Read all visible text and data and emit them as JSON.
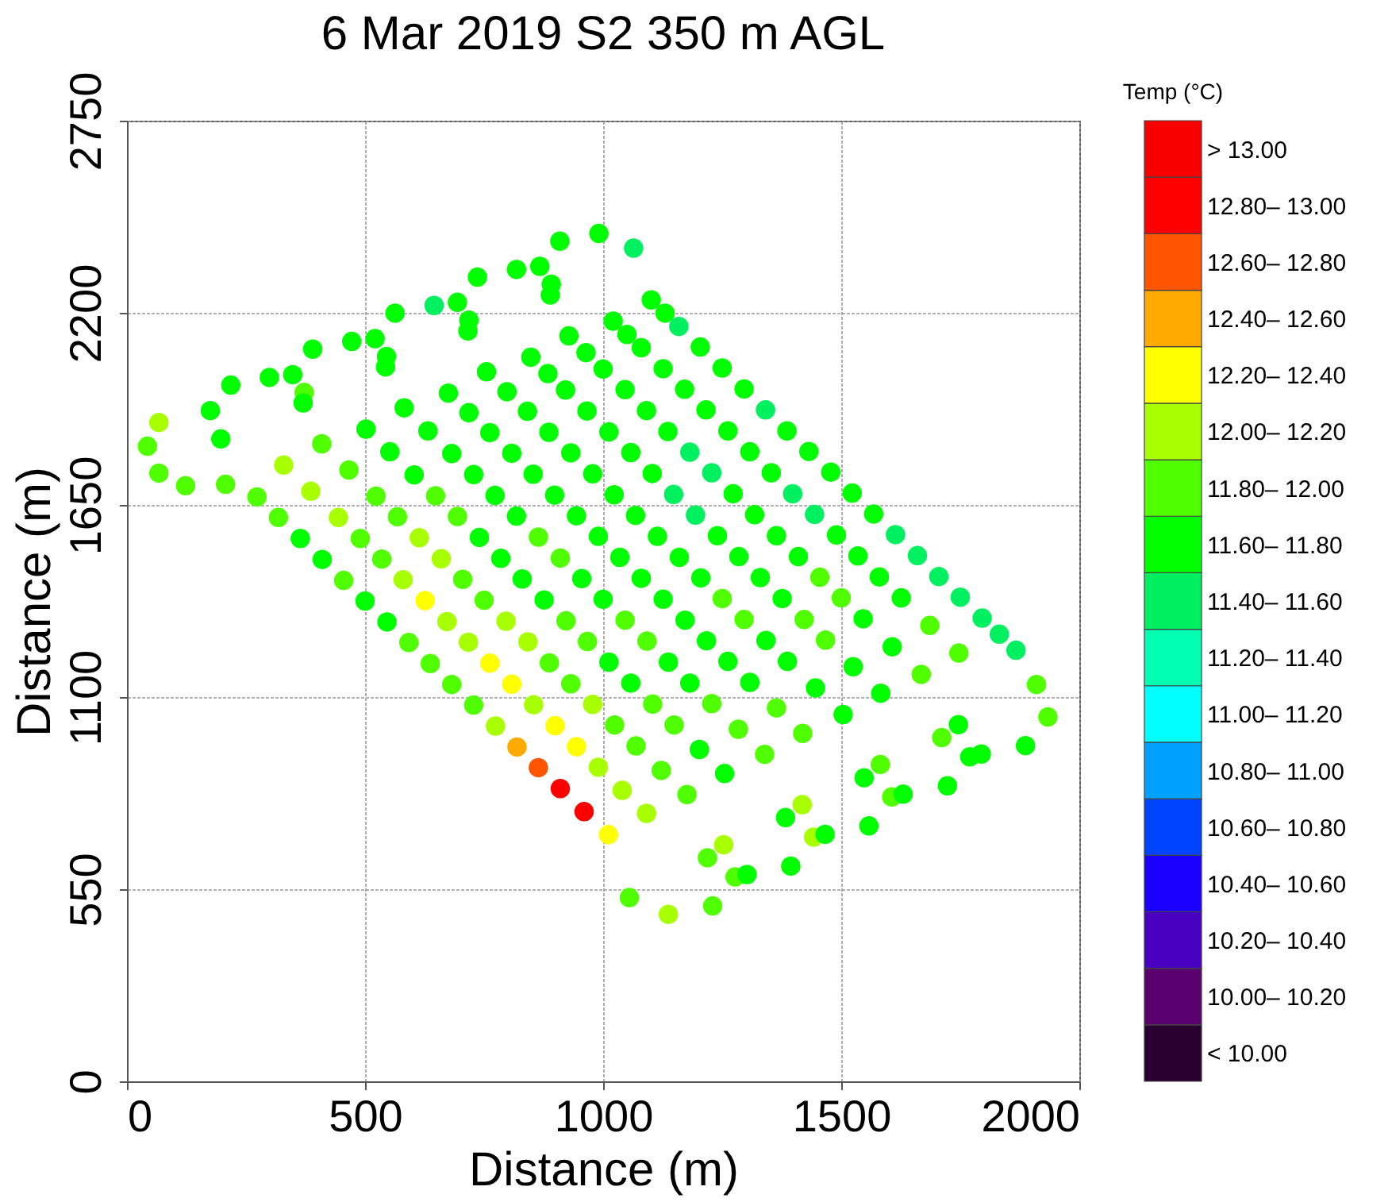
{
  "chart_data": {
    "type": "scatter",
    "title": "6 Mar 2019 S2 350 m AGL",
    "xlabel": "Distance (m)",
    "ylabel": "Distance (m)",
    "clabel": "Temp (°C)",
    "x": [
      67,
      43,
      67,
      123,
      207,
      273,
      318,
      364,
      410,
      455,
      500,
      546,
      592,
      637,
      682,
      728,
      774,
      819,
      864,
      910,
      960,
      1011,
      1055,
      1137,
      1230,
      1277,
      1253,
      1091,
      1040,
      990,
      944,
      899,
      854,
      808,
      762,
      717,
      672,
      626,
      580,
      535,
      490,
      444,
      386,
      329,
      197,
      175,
      218,
      299,
      372,
      409,
      466,
      523,
      568,
      614,
      660,
      705,
      750,
      796,
      842,
      887,
      932,
      978,
      1024,
      1069,
      1122,
      1176,
      1219,
      1302,
      1394,
      1442,
      1418,
      1255,
      1202,
      1149,
      1104,
      1058,
      1012,
      967,
      922,
      876,
      830,
      785,
      740,
      694,
      648,
      603,
      552,
      502,
      370,
      348,
      390,
      472,
      545,
      582,
      632,
      682,
      728,
      773,
      818,
      864,
      910,
      955,
      1000,
      1046,
      1092,
      1137,
      1182,
      1228,
      1284,
      1339,
      1383,
      1466,
      1558,
      1606,
      1582,
      1419,
      1364,
      1308,
      1262,
      1217,
      1172,
      1126,
      1080,
      1035,
      990,
      944,
      898,
      853,
      808,
      762,
      718,
      675,
      543,
      521,
      563,
      645,
      718,
      755,
      798,
      841,
      886,
      932,
      978,
      1023,
      1068,
      1114,
      1160,
      1205,
      1250,
      1296,
      1342,
      1387,
      1446,
      1504,
      1548,
      1630,
      1723,
      1770,
      1746,
      1583,
      1525,
      1467,
      1422,
      1376,
      1330,
      1285,
      1240,
      1194,
      1148,
      1103,
      1058,
      1012,
      966,
      921,
      884,
      848,
      716,
      694,
      736,
      818,
      891,
      928,
      964,
      1000,
      1046,
      1091,
      1136,
      1182,
      1228,
      1273,
      1318,
      1364,
      1410,
      1455,
      1500,
      1546,
      1607,
      1668,
      1711,
      1794,
      1887,
      1934,
      1910,
      1747,
      1686,
      1626,
      1580,
      1535,
      1490,
      1444,
      1398,
      1353,
      1308,
      1262,
      1216,
      1171,
      1126,
      1080,
      1050,
      1021,
      889,
      867,
      909,
      991,
      1064,
      1101,
      1130,
      1159,
      1204,
      1250,
      1296,
      1341,
      1386,
      1432,
      1478,
      1523,
      1568,
      1614,
      1660,
      1705,
      1750,
      1796,
      1832,
      1867
    ],
    "values": [
      1886,
      1818,
      1741,
      1705,
      1709,
      1673,
      1614,
      1554,
      1494,
      1434,
      1375,
      1315,
      1256,
      1196,
      1136,
      1077,
      1017,
      957,
      898,
      838,
      772,
      706,
      526,
      478,
      502,
      585,
      677,
      767,
      833,
      899,
      958,
      1018,
      1078,
      1137,
      1197,
      1257,
      1316,
      1376,
      1436,
      1495,
      1554,
      1614,
      1689,
      1764,
      1839,
      1920,
      1993,
      2015,
      1972,
      1825,
      1750,
      1675,
      1616,
      1556,
      1496,
      1437,
      1377,
      1317,
      1258,
      1198,
      1138,
      1079,
      1020,
      960,
      890,
      821,
      640,
      592,
      616,
      699,
      792,
      881,
      950,
      1020,
      1080,
      1140,
      1200,
      1259,
      1318,
      1378,
      1438,
      1497,
      1557,
      1617,
      1676,
      1736,
      1802,
      1867,
      1942,
      2023,
      2096,
      2118,
      2075,
      1928,
      1862,
      1797,
      1737,
      1677,
      1618,
      1558,
      1498,
      1439,
      1380,
      1320,
      1260,
      1200,
      1140,
      1081,
      1008,
      936,
      755,
      707,
      731,
      814,
      907,
      996,
      1069,
      1142,
      1202,
      1261,
      1320,
      1380,
      1440,
      1500,
      1560,
      1619,
      1678,
      1738,
      1798,
      1857,
      1914,
      1970,
      2045,
      2126,
      2199,
      2221,
      2179,
      2031,
      1974,
      1918,
      1858,
      1799,
      1739,
      1679,
      1620,
      1560,
      1500,
      1441,
      1382,
      1322,
      1262,
      1202,
      1126,
      1050,
      869,
      822,
      846,
      929,
      1021,
      1111,
      1187,
      1263,
      1322,
      1382,
      1442,
      1502,
      1562,
      1621,
      1680,
      1740,
      1800,
      1859,
      1919,
      1979,
      2026,
      2073,
      2148,
      2230,
      2302,
      2324,
      2282,
      2134,
      2086,
      2039,
      1980,
      1920,
      1860,
      1801,
      1742,
      1682,
      1622,
      1562,
      1502,
      1443,
      1384,
      1324,
      1244,
      1165,
      984,
      937,
      961,
      1043,
      1136,
      1226,
      1305,
      1384,
      1444,
      1504,
      1564,
      1623,
      1682,
      1742,
      1802,
      1862,
      1922,
      1981,
      2040,
      2100,
      2138,
      2176,
      2251,
      2333,
      2405,
      2427,
      2385,
      2237,
      2199,
      2161,
      2102,
      2042,
      1982,
      1922,
      1862,
      1803,
      1744,
      1684,
      1624,
      1565,
      1505,
      1445,
      1386,
      1326,
      1280,
      1234
    ],
    "cvalues": [
      12.1,
      11.9,
      11.9,
      11.9,
      11.9,
      11.9,
      11.9,
      11.7,
      11.7,
      11.9,
      11.7,
      11.7,
      11.9,
      11.9,
      11.9,
      11.9,
      12.1,
      12.5,
      12.7,
      12.9,
      12.9,
      12.3,
      11.9,
      12.1,
      11.9,
      11.9,
      12.1,
      12.1,
      12.1,
      12.1,
      12.3,
      12.3,
      12.1,
      12.3,
      12.3,
      12.1,
      12.1,
      12.3,
      12.1,
      11.9,
      11.9,
      12.1,
      12.1,
      12.1,
      11.7,
      11.7,
      11.7,
      11.7,
      11.9,
      11.9,
      11.9,
      11.9,
      11.9,
      12.1,
      12.1,
      11.9,
      11.9,
      12.1,
      12.1,
      11.9,
      11.9,
      12.1,
      11.9,
      11.9,
      11.9,
      11.9,
      11.9,
      11.7,
      11.7,
      12.1,
      12.1,
      11.7,
      11.7,
      11.9,
      11.9,
      11.7,
      11.7,
      11.9,
      11.9,
      11.7,
      11.7,
      11.7,
      11.7,
      11.9,
      11.9,
      11.7,
      11.7,
      11.7,
      11.7,
      11.7,
      11.7,
      11.7,
      11.7,
      11.7,
      11.7,
      11.7,
      11.7,
      11.7,
      11.7,
      11.9,
      11.9,
      11.7,
      11.7,
      11.9,
      11.9,
      11.7,
      11.7,
      11.9,
      11.9,
      11.9,
      11.7,
      11.7,
      11.7,
      11.9,
      11.9,
      11.9,
      11.9,
      11.7,
      11.7,
      11.7,
      11.7,
      11.7,
      11.7,
      11.7,
      11.7,
      11.7,
      11.7,
      11.7,
      11.7,
      11.7,
      11.7,
      11.7,
      11.7,
      11.7,
      11.7,
      11.5,
      11.7,
      11.7,
      11.7,
      11.7,
      11.7,
      11.7,
      11.7,
      11.7,
      11.7,
      11.7,
      11.7,
      11.7,
      11.9,
      11.9,
      11.7,
      11.7,
      11.7,
      11.7,
      11.7,
      11.7,
      11.7,
      11.7,
      11.7,
      11.7,
      11.7,
      11.9,
      11.9,
      11.7,
      11.7,
      11.7,
      11.7,
      11.5,
      11.5,
      11.7,
      11.7,
      11.7,
      11.7,
      11.7,
      11.7,
      11.7,
      11.7,
      11.7,
      11.7,
      11.7,
      11.7,
      11.7,
      11.7,
      11.7,
      11.7,
      11.7,
      11.7,
      11.5,
      11.5,
      11.7,
      11.7,
      11.7,
      11.7,
      11.9,
      11.9,
      11.7,
      11.7,
      11.9,
      11.9,
      11.7,
      11.7,
      11.9,
      11.9,
      11.9,
      11.9,
      11.7,
      11.7,
      11.7,
      11.7,
      11.5,
      11.5,
      11.7,
      11.7,
      11.7,
      11.7,
      11.7,
      11.7,
      11.7,
      11.7,
      11.7,
      11.7,
      11.7,
      11.7,
      11.7,
      11.5,
      11.7,
      11.7,
      11.5,
      11.7,
      11.7,
      11.7,
      11.5,
      11.7,
      11.7,
      11.7,
      11.7,
      11.7,
      11.5,
      11.5,
      11.5,
      11.5,
      11.5,
      11.5,
      11.5
    ],
    "xlim": [
      0,
      2000
    ],
    "xticks": [
      0,
      500,
      1000,
      1500,
      2000
    ],
    "ylim": [
      0,
      2750
    ],
    "yticks": [
      0,
      550,
      1100,
      1650,
      2200,
      2750
    ],
    "clim": [
      9.8,
      13.2
    ],
    "cticks": [
      {
        "value": 9.9,
        "label": "< 10.00"
      },
      {
        "value": 10.1,
        "label": "10.00– 10.20"
      },
      {
        "value": 10.3,
        "label": "10.20– 10.40"
      },
      {
        "value": 10.5,
        "label": "10.40– 10.60"
      },
      {
        "value": 10.7,
        "label": "10.60– 10.80"
      },
      {
        "value": 10.9,
        "label": "10.80– 11.00"
      },
      {
        "value": 11.1,
        "label": "11.00– 11.20"
      },
      {
        "value": 11.3,
        "label": "11.20– 11.40"
      },
      {
        "value": 11.5,
        "label": "11.40– 11.60"
      },
      {
        "value": 11.7,
        "label": "11.60– 11.80"
      },
      {
        "value": 11.9,
        "label": "11.80– 12.00"
      },
      {
        "value": 12.1,
        "label": "12.00– 12.20"
      },
      {
        "value": 12.3,
        "label": "12.20– 12.40"
      },
      {
        "value": 12.5,
        "label": "12.40– 12.60"
      },
      {
        "value": 12.7,
        "label": "12.60– 12.80"
      },
      {
        "value": 12.9,
        "label": "12.80– 13.00"
      },
      {
        "value": 13.1,
        "label": "> 13.00"
      }
    ],
    "grid": true,
    "marker": "circle"
  }
}
